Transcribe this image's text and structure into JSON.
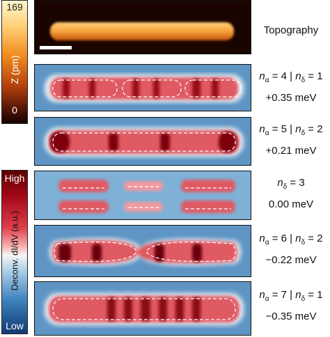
{
  "colorbar_topography": {
    "max": "169",
    "min": "0",
    "label": "Z (pm)"
  },
  "colorbar_deconv": {
    "high": "High",
    "low": "Low",
    "label": "Deconv. dI/dV (a.u.)"
  },
  "panels": [
    {
      "label": "Topography"
    },
    {
      "line1_prefix": "n",
      "sub_a": "α",
      "mid": " = 4 | ",
      "sub_d": "δ",
      "line1_suffix": " = 1",
      "energy": "+0.35 meV"
    },
    {
      "line1_prefix": "n",
      "sub_a": "α",
      "mid": " = 5 | ",
      "sub_d": "δ",
      "line1_suffix": " = 2",
      "energy": "+0.21 meV"
    },
    {
      "line1_prefix": "n",
      "sub_d": "δ",
      "line1_suffix": " = 3",
      "energy": "0.00 meV"
    },
    {
      "line1_prefix": "n",
      "sub_a": "α",
      "mid": " = 6 | ",
      "sub_d": "δ",
      "line1_suffix": " = 2",
      "energy": "−0.22 meV"
    },
    {
      "line1_prefix": "n",
      "sub_a": "α",
      "mid": " = 7 | ",
      "sub_d": "δ",
      "line1_suffix": " = 1",
      "energy": "−0.35 meV"
    }
  ],
  "colors": {
    "topo_bg": "#1a0400",
    "topo_wire": "#f7a23a",
    "map_bg": "#5e95c4",
    "hot": "#c0101e",
    "dark": "#3a0008"
  }
}
